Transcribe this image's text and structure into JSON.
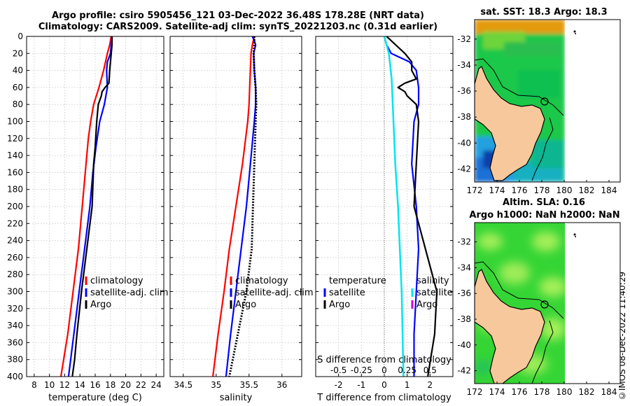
{
  "header": {
    "line1": "Argo profile: csiro 5905456_121 03-Dec-2022 36.48S 178.28E (NRT data)",
    "line2": "Climatology: CARS2009. Satellite-adj clim: synTS_20221203.nc (0.31d earlier)"
  },
  "map_titles": {
    "sst": "sat. SST: 18.3 Argo: 18.3",
    "sla1": "Altim. SLA: 0.16",
    "sla2": "Argo h1000: NaN h2000: NaN"
  },
  "timestamp": "©IMOS 08-Dec-2022 11:40:29",
  "colors": {
    "climatology": "#ff0000",
    "satellite": "#0000ff",
    "argo": "#000000",
    "s_sat": "#00e5ee",
    "s_argo": "#cc00cc",
    "land": "#f7c89b"
  },
  "chart_data": [
    {
      "type": "line",
      "id": "temperature",
      "xlabel": "temperature (deg C)",
      "ylabel": "depth",
      "xlim": [
        7,
        25
      ],
      "ylim": [
        0,
        400
      ],
      "xticks": [
        8,
        10,
        12,
        14,
        16,
        18,
        20,
        22,
        24
      ],
      "yticks": [
        0,
        20,
        40,
        60,
        80,
        100,
        120,
        140,
        160,
        180,
        200,
        220,
        240,
        260,
        280,
        300,
        320,
        340,
        360,
        380,
        400
      ],
      "legend": [
        "climatology",
        "satellite-adj. clim",
        "Argo"
      ],
      "series": [
        {
          "name": "climatology",
          "depth": [
            0,
            10,
            20,
            40,
            60,
            80,
            100,
            120,
            150,
            200,
            250,
            300,
            350,
            400
          ],
          "values": [
            18.1,
            17.9,
            17.6,
            17.1,
            16.5,
            15.8,
            15.4,
            15.1,
            14.8,
            14.3,
            13.8,
            13.1,
            12.4,
            11.5
          ]
        },
        {
          "name": "satellite-adj. clim",
          "depth": [
            0,
            10,
            20,
            30,
            40,
            60,
            80,
            100,
            130,
            160,
            200,
            250,
            300,
            350,
            400
          ],
          "values": [
            18.2,
            18.1,
            18.0,
            17.6,
            17.5,
            17.6,
            17.2,
            16.6,
            16.1,
            15.7,
            15.3,
            14.6,
            13.9,
            13.2,
            12.5
          ]
        },
        {
          "name": "Argo",
          "depth": [
            0,
            10,
            20,
            40,
            55,
            60,
            65,
            70,
            80,
            100,
            130,
            150,
            200,
            250,
            300,
            350,
            380,
            400
          ],
          "values": [
            18.2,
            18.2,
            18.1,
            17.9,
            17.8,
            17.3,
            16.9,
            16.8,
            16.4,
            16.2,
            16.0,
            15.8,
            15.6,
            14.9,
            14.2,
            13.6,
            13.3,
            13.0
          ]
        }
      ]
    },
    {
      "type": "line",
      "id": "salinity",
      "xlabel": "salinity",
      "ylabel": "depth",
      "xlim": [
        34.3,
        36.3
      ],
      "ylim": [
        0,
        400
      ],
      "xticks": [
        34.5,
        35,
        35.5,
        36
      ],
      "xtick_labels": [
        "34.5",
        "35",
        "35.5",
        "36"
      ],
      "legend": [
        "climatology",
        "satellite-adj. clim",
        "Argo"
      ],
      "series": [
        {
          "name": "climatology",
          "depth": [
            0,
            10,
            20,
            40,
            60,
            80,
            100,
            150,
            200,
            250,
            300,
            350,
            400
          ],
          "values": [
            35.58,
            35.55,
            35.53,
            35.52,
            35.51,
            35.5,
            35.48,
            35.4,
            35.3,
            35.2,
            35.12,
            35.03,
            34.95
          ]
        },
        {
          "name": "satellite-adj. clim",
          "depth": [
            0,
            5,
            10,
            20,
            40,
            60,
            80,
            100,
            150,
            200,
            250,
            300,
            350,
            400
          ],
          "values": [
            35.55,
            35.58,
            35.6,
            35.57,
            35.58,
            35.6,
            35.6,
            35.58,
            35.52,
            35.46,
            35.38,
            35.3,
            35.22,
            35.15
          ]
        },
        {
          "name": "Argo",
          "depth": [
            0,
            10,
            20,
            40,
            60,
            80,
            100,
            150,
            200,
            250,
            300,
            350,
            400
          ],
          "values": [
            35.58,
            35.58,
            35.57,
            35.58,
            35.6,
            35.61,
            35.6,
            35.58,
            35.56,
            35.54,
            35.46,
            35.33,
            35.2
          ]
        }
      ]
    },
    {
      "type": "line",
      "id": "difference",
      "xlabel": "T difference from climatology",
      "xlabel_top": "S difference from climatology",
      "xlim": [
        -3,
        3
      ],
      "ylim": [
        0,
        400
      ],
      "xticks": [
        -2,
        -1,
        0,
        1,
        2
      ],
      "xtick_labels": [
        "-2",
        "-1",
        "0",
        "1",
        "2"
      ],
      "top_ticks": [
        "-0.5",
        "-0.25",
        "0",
        "0.25",
        "0.5"
      ],
      "legend_titles": {
        "left": "temperature",
        "right": "salinity"
      },
      "legend_left": [
        "satellite",
        "Argo"
      ],
      "legend_right": [
        "satellite",
        "Argo"
      ],
      "series": [
        {
          "name": "T satellite",
          "depth": [
            0,
            10,
            20,
            30,
            40,
            60,
            80,
            100,
            150,
            200,
            250,
            300,
            350,
            400
          ],
          "values": [
            0.0,
            0.1,
            0.3,
            1.1,
            1.4,
            1.5,
            1.5,
            1.3,
            1.2,
            1.4,
            1.5,
            1.4,
            1.3,
            1.3
          ]
        },
        {
          "name": "T Argo",
          "depth": [
            0,
            10,
            20,
            30,
            40,
            50,
            55,
            60,
            65,
            70,
            80,
            100,
            150,
            200,
            250,
            300,
            350,
            400
          ],
          "values": [
            0.1,
            0.5,
            0.9,
            1.2,
            1.2,
            1.4,
            0.9,
            0.6,
            0.9,
            1.0,
            1.4,
            1.5,
            1.4,
            1.3,
            1.8,
            2.3,
            2.2,
            1.9
          ]
        },
        {
          "name": "S satellite",
          "depth": [
            0,
            20,
            50,
            100,
            150,
            200,
            250,
            300,
            350,
            400
          ],
          "values": [
            0.0,
            0.05,
            0.08,
            0.1,
            0.12,
            0.15,
            0.17,
            0.19,
            0.2,
            0.21
          ]
        }
      ]
    },
    {
      "type": "heatmap",
      "id": "sst_map",
      "xlim": [
        172,
        185
      ],
      "ylim": [
        -43,
        -30.5
      ],
      "xticks": [
        172,
        174,
        176,
        178,
        180,
        182,
        184
      ],
      "yticks": [
        -32,
        -34,
        -36,
        -38,
        -40,
        -42
      ],
      "argo_position": [
        178.28,
        -36.48
      ]
    },
    {
      "type": "heatmap",
      "id": "sla_map",
      "xlim": [
        172,
        185
      ],
      "ylim": [
        -43,
        -30.5
      ],
      "xticks": [
        172,
        174,
        176,
        178,
        180,
        182,
        184
      ],
      "yticks": [
        -32,
        -34,
        -36,
        -38,
        -40,
        -42
      ],
      "argo_position": [
        178.28,
        -36.48
      ]
    }
  ]
}
